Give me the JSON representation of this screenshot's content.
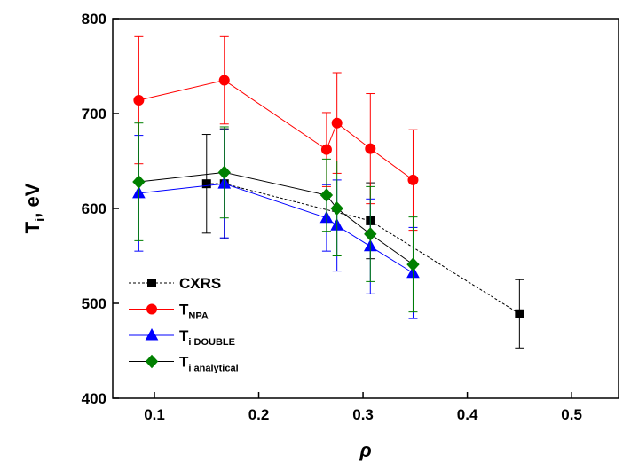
{
  "chart_data": {
    "type": "scatter",
    "xlabel": "ρ",
    "ylabel": "T",
    "ylabel_subscript": "i",
    "ylabel_suffix": ", eV",
    "xlim": [
      0.06,
      0.545
    ],
    "ylim": [
      400,
      800
    ],
    "xticks": [
      0.1,
      0.2,
      0.3,
      0.4,
      0.5
    ],
    "yticks": [
      400,
      500,
      600,
      700,
      800
    ],
    "legend": "lower left",
    "series": [
      {
        "name": "CXRS",
        "color": "#000000",
        "line_color": "#000000",
        "line_style": "dashed",
        "marker": "square",
        "x": [
          0.15,
          0.167,
          0.307,
          0.45
        ],
        "values": [
          626,
          626,
          587,
          489
        ],
        "errors": [
          52,
          58,
          40,
          36
        ]
      },
      {
        "name": "T",
        "subscript": "NPA",
        "color": "#ff0000",
        "line_color": "#ff0000",
        "line_style": "solid",
        "marker": "circle",
        "x": [
          0.085,
          0.167,
          0.265,
          0.275,
          0.307,
          0.348
        ],
        "values": [
          714,
          735,
          662,
          690,
          663,
          630
        ],
        "errors": [
          67,
          46,
          39,
          53,
          58,
          53
        ]
      },
      {
        "name": "T",
        "subscript": "i DOUBLE",
        "color": "#0000ff",
        "line_color": "#0000ff",
        "line_style": "solid",
        "marker": "triangle",
        "x": [
          0.085,
          0.167,
          0.265,
          0.275,
          0.307,
          0.348
        ],
        "values": [
          616,
          626,
          590,
          582,
          560,
          532
        ],
        "errors": [
          61,
          57,
          35,
          48,
          50,
          48
        ]
      },
      {
        "name": "T",
        "subscript": "i analytical",
        "color": "#008000",
        "line_color": "#000000",
        "line_style": "solid",
        "marker": "diamond",
        "x": [
          0.085,
          0.167,
          0.265,
          0.275,
          0.307,
          0.348
        ],
        "values": [
          628,
          638,
          614,
          600,
          573,
          541
        ],
        "errors": [
          62,
          48,
          38,
          50,
          50,
          50
        ]
      }
    ]
  }
}
